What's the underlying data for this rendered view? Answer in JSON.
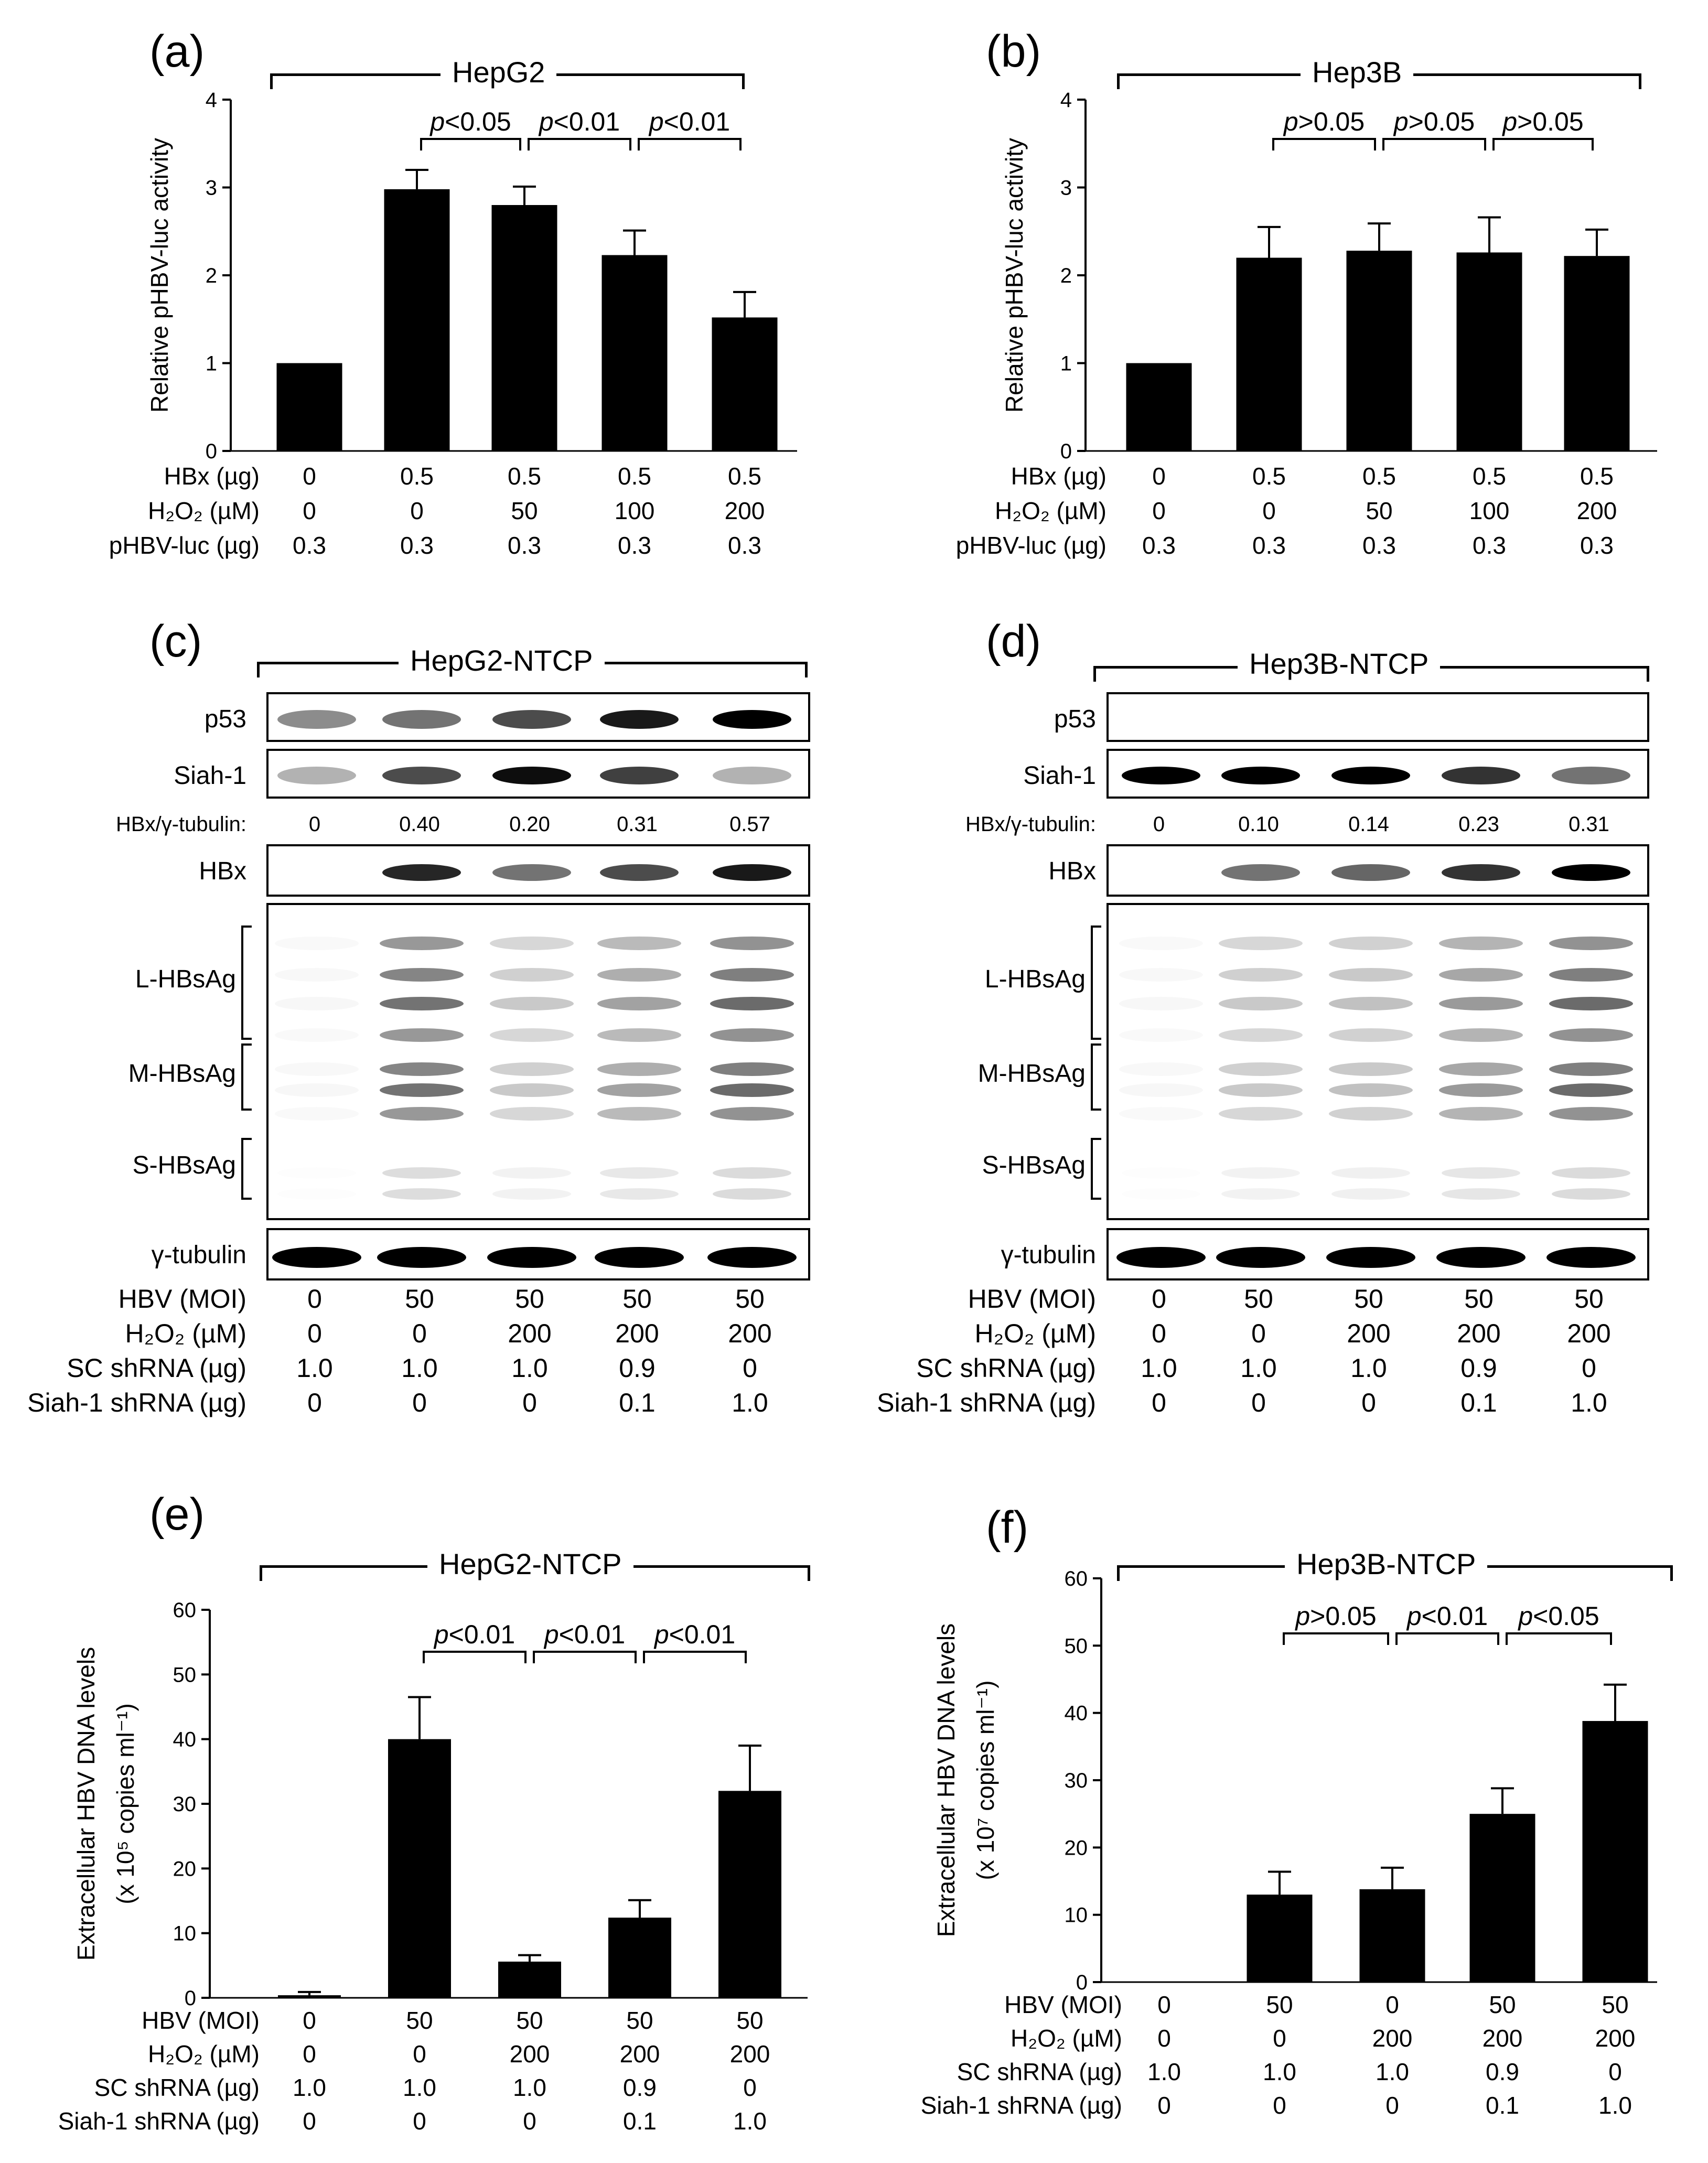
{
  "panels": {
    "a": {
      "label": "(a)",
      "cell": "HepG2"
    },
    "b": {
      "label": "(b)",
      "cell": "Hep3B"
    },
    "c": {
      "label": "(c)",
      "cell": "HepG2-NTCP"
    },
    "d": {
      "label": "(d)",
      "cell": "Hep3B-NTCP"
    },
    "e": {
      "label": "(e)",
      "cell": "HepG2-NTCP"
    },
    "f": {
      "label": "(f)",
      "cell": "Hep3B-NTCP"
    }
  },
  "conditions_ab": {
    "labels": [
      "HBx (µg)",
      "H₂O₂ (µM)",
      "pHBV-luc (µg)"
    ],
    "rows": [
      [
        "0",
        "0.5",
        "0.5",
        "0.5",
        "0.5"
      ],
      [
        "0",
        "0",
        "50",
        "100",
        "200"
      ],
      [
        "0.3",
        "0.3",
        "0.3",
        "0.3",
        "0.3"
      ]
    ]
  },
  "conditions_cdef": {
    "labels": [
      "HBV (MOI)",
      "H₂O₂ (µM)",
      "SC shRNA (µg)",
      "Siah-1 shRNA (µg)"
    ],
    "rows": [
      [
        "0",
        "50",
        "50",
        "50",
        "50"
      ],
      [
        "0",
        "0",
        "200",
        "200",
        "200"
      ],
      [
        "1.0",
        "1.0",
        "1.0",
        "0.9",
        "0"
      ],
      [
        "0",
        "0",
        "0",
        "0.1",
        "1.0"
      ]
    ]
  },
  "conditions_f": {
    "rows": [
      [
        "0",
        "50",
        "0",
        "50",
        "50"
      ],
      [
        "0",
        "0",
        "200",
        "200",
        "200"
      ],
      [
        "1.0",
        "1.0",
        "1.0",
        "0.9",
        "0"
      ],
      [
        "0",
        "0",
        "0",
        "0.1",
        "1.0"
      ]
    ]
  },
  "blots": {
    "c": {
      "ratio_label": "HBx/γ-tubulin:",
      "ratios": [
        "0",
        "0.40",
        "0.20",
        "0.31",
        "0.57"
      ],
      "rows": [
        "p53",
        "Siah-1",
        "HBx",
        "L-HBsAg",
        "M-HBsAg",
        "S-HBsAg",
        "γ-tubulin"
      ]
    },
    "d": {
      "ratio_label": "HBx/γ-tubulin:",
      "ratios": [
        "0",
        "0.10",
        "0.14",
        "0.23",
        "0.31"
      ],
      "rows": [
        "p53",
        "Siah-1",
        "HBx",
        "L-HBsAg",
        "M-HBsAg",
        "S-HBsAg",
        "γ-tubulin"
      ]
    }
  },
  "chart_data": [
    {
      "id": "a",
      "type": "bar",
      "ylabel": "Relative pHBV-luc activity",
      "ylim": [
        0,
        4
      ],
      "yticks": [
        0,
        1,
        2,
        3,
        4
      ],
      "values": [
        1.0,
        2.98,
        2.8,
        2.23,
        1.52
      ],
      "errors": [
        0,
        0.22,
        0.21,
        0.28,
        0.29
      ],
      "comparisons": [
        {
          "from": 1,
          "to": 2,
          "text": "p<0.05"
        },
        {
          "from": 2,
          "to": 3,
          "text": "p<0.01"
        },
        {
          "from": 3,
          "to": 4,
          "text": "p<0.01"
        }
      ]
    },
    {
      "id": "b",
      "type": "bar",
      "ylabel": "Relative pHBV-luc activity",
      "ylim": [
        0,
        4
      ],
      "yticks": [
        0,
        1,
        2,
        3,
        4
      ],
      "values": [
        1.0,
        2.2,
        2.28,
        2.26,
        2.22
      ],
      "errors": [
        0,
        0.35,
        0.31,
        0.4,
        0.3
      ],
      "comparisons": [
        {
          "from": 1,
          "to": 2,
          "text": "p>0.05"
        },
        {
          "from": 2,
          "to": 3,
          "text": "p>0.05"
        },
        {
          "from": 3,
          "to": 4,
          "text": "p>0.05"
        }
      ]
    },
    {
      "id": "e",
      "type": "bar",
      "ylabel": "Extracellular HBV DNA levels",
      "ylabel2": "(x 10⁵ copies ml⁻¹)",
      "ylim": [
        0,
        60
      ],
      "yticks": [
        0,
        10,
        20,
        30,
        40,
        50,
        60
      ],
      "values": [
        0.4,
        40.0,
        5.6,
        12.4,
        32.0
      ],
      "errors": [
        0.5,
        6.5,
        1.0,
        2.7,
        7.0
      ],
      "comparisons": [
        {
          "from": 1,
          "to": 2,
          "text": "p<0.01"
        },
        {
          "from": 2,
          "to": 3,
          "text": "p<0.01"
        },
        {
          "from": 3,
          "to": 4,
          "text": "p<0.01"
        }
      ]
    },
    {
      "id": "f",
      "type": "bar",
      "ylabel": "Extracellular HBV DNA levels",
      "ylabel2": "(x 10⁷ copies ml⁻¹)",
      "ylim": [
        0,
        60
      ],
      "yticks": [
        0,
        10,
        20,
        30,
        40,
        50,
        60
      ],
      "values": [
        0,
        13.0,
        13.8,
        25.0,
        38.8
      ],
      "errors": [
        0,
        3.4,
        3.2,
        3.8,
        5.4
      ],
      "comparisons": [
        {
          "from": 1,
          "to": 2,
          "text": "p>0.05"
        },
        {
          "from": 2,
          "to": 3,
          "text": "p<0.01"
        },
        {
          "from": 3,
          "to": 4,
          "text": "p<0.05"
        }
      ]
    }
  ]
}
